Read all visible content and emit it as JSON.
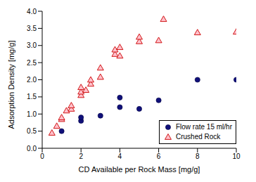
{
  "chart_data": {
    "type": "scatter",
    "x_label": "CD Available per Rock Mass [mg/g]",
    "y_label": "Adsorption Density [mg/g]",
    "xlim": [
      0,
      10
    ],
    "xticks": [
      0,
      2,
      4,
      6,
      8,
      10
    ],
    "ylim": [
      0,
      4
    ],
    "yticks": [
      {
        "value": 0,
        "label": "0.0"
      },
      {
        "value": 0.5,
        "label": "0.5"
      },
      {
        "value": 1,
        "label": "1.0"
      },
      {
        "value": 1.5,
        "label": "1.5"
      },
      {
        "value": 2,
        "label": "2.0"
      },
      {
        "value": 2.5,
        "label": "2.5"
      },
      {
        "value": 3,
        "label": "3.0"
      },
      {
        "value": 3.5,
        "label": "3.5"
      },
      {
        "value": 4,
        "label": "4.0"
      }
    ],
    "grid": false,
    "legend": "lower right",
    "series": [
      {
        "name": "Flow rate 15 ml/hr",
        "color": "#10107a",
        "marker": "circle",
        "x": [
          1,
          2,
          2,
          3,
          4,
          4,
          5,
          6,
          8,
          10
        ],
        "values": [
          0.5,
          0.8,
          0.9,
          0.95,
          1.2,
          1.48,
          1.15,
          1.4,
          2.0,
          2.0
        ]
      },
      {
        "name": "Crushed Rock",
        "color": "#ffc0cb",
        "marker": "triangle",
        "x": [
          0.5,
          0.75,
          1,
          1,
          1.25,
          1.5,
          1.5,
          2,
          2,
          2,
          2.25,
          2.5,
          2.5,
          3,
          3,
          3.75,
          3.75,
          4,
          4,
          5,
          5,
          6,
          6.25,
          8,
          10
        ],
        "values": [
          0.45,
          0.65,
          0.85,
          0.9,
          1.1,
          1.15,
          1.25,
          1.55,
          1.65,
          1.78,
          1.7,
          1.88,
          2.0,
          2.08,
          2.35,
          2.75,
          2.88,
          2.7,
          2.95,
          3.12,
          3.25,
          3.15,
          3.77,
          3.38,
          3.4
        ]
      }
    ]
  }
}
